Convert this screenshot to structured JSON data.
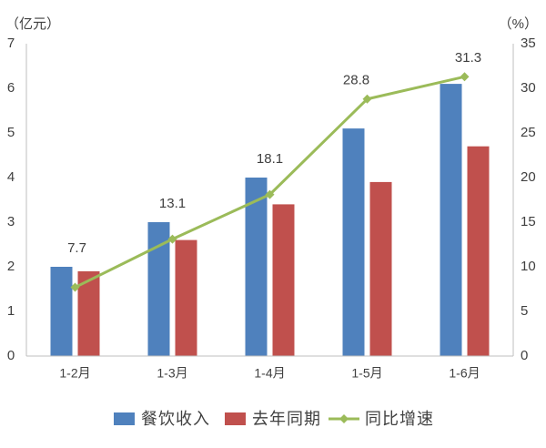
{
  "chart_data": {
    "type": "bar",
    "categories": [
      "1-2月",
      "1-3月",
      "1-4月",
      "1-5月",
      "1-6月"
    ],
    "series": [
      {
        "name": "餐饮收入",
        "type": "bar",
        "axis": "left",
        "color": "#4F81BD",
        "values": [
          2.0,
          3.0,
          4.0,
          5.1,
          6.1
        ]
      },
      {
        "name": "去年同期",
        "type": "bar",
        "axis": "left",
        "color": "#C0504D",
        "values": [
          1.9,
          2.6,
          3.4,
          3.9,
          4.7
        ]
      },
      {
        "name": "同比增速",
        "type": "line",
        "axis": "right",
        "marker": "diamond",
        "color": "#9BBB59",
        "values": [
          7.7,
          13.1,
          18.1,
          28.8,
          31.3
        ],
        "data_labels": true
      }
    ],
    "y_left": {
      "label": "（亿元）",
      "ylim": [
        0,
        7
      ],
      "ticks": [
        0,
        1,
        2,
        3,
        4,
        5,
        6,
        7
      ]
    },
    "y_right": {
      "label": "（%）",
      "ylim": [
        0,
        35
      ],
      "ticks": [
        0,
        5,
        10,
        15,
        20,
        25,
        30,
        35
      ]
    },
    "grid": false,
    "legend": "bottom"
  }
}
